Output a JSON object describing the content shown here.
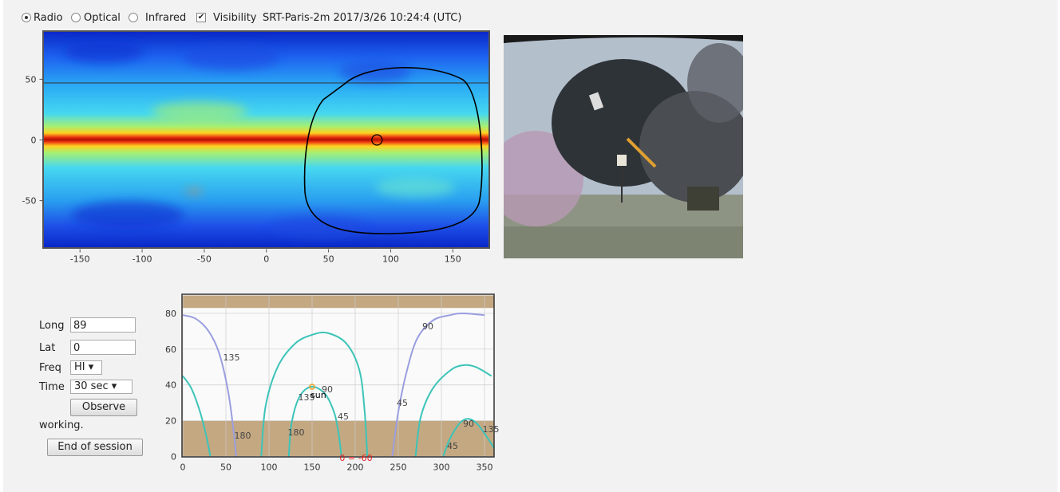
{
  "toolbar": {
    "modes": [
      {
        "label": "Radio",
        "checked": true
      },
      {
        "label": "Optical",
        "checked": false
      },
      {
        "label": "Infrared",
        "checked": false
      }
    ],
    "visibility": {
      "label": "Visibility",
      "checked": true
    },
    "status": "SRT-Paris-2m 2017/3/26 10:24:4 (UTC)"
  },
  "sky_map": {
    "type": "heatmap",
    "xlim": [
      -180,
      180
    ],
    "ylim": [
      -90,
      90
    ],
    "xticks": [
      -150,
      -100,
      -50,
      0,
      50,
      100,
      150
    ],
    "yticks": [
      -50,
      0,
      50
    ],
    "pointer": {
      "x": 89,
      "y": 0
    }
  },
  "form": {
    "fields": [
      {
        "label": "Long",
        "value": "89"
      },
      {
        "label": "Lat",
        "value": "0"
      }
    ],
    "selects": [
      {
        "label": "Freq",
        "value": "HI"
      },
      {
        "label": "Time",
        "value": "30 sec"
      }
    ],
    "observe": "Observe",
    "status": "working.",
    "end": "End of session"
  },
  "chart_data": {
    "type": "line",
    "xlim": [
      0,
      360
    ],
    "ylim": [
      0,
      90
    ],
    "xticks": [
      0,
      50,
      100,
      150,
      200,
      250,
      300,
      350
    ],
    "yticks": [
      0,
      20,
      40,
      60,
      80
    ],
    "grid": true,
    "shaded_ranges": [
      [
        0,
        20
      ],
      [
        83,
        90
      ]
    ],
    "shade_color": "#c4a882",
    "series": [
      {
        "color": "#9a9ee0",
        "x": [
          0,
          15,
          30,
          42,
          52,
          58,
          62
        ],
        "values": [
          79,
          77,
          70,
          58,
          38,
          18,
          0
        ]
      },
      {
        "color": "#9a9ee0",
        "x": [
          243,
          250,
          260,
          272,
          290,
          310,
          325,
          350
        ],
        "values": [
          0,
          25,
          48,
          66,
          76,
          79,
          80,
          79
        ]
      },
      {
        "color": "#3cc4b8",
        "x": [
          0,
          10,
          20,
          27,
          32
        ],
        "values": [
          45,
          38,
          25,
          12,
          0
        ]
      },
      {
        "color": "#3cc4b8",
        "x": [
          91,
          96,
          110,
          130,
          150,
          168,
          190,
          205,
          211,
          214
        ],
        "values": [
          0,
          28,
          50,
          63,
          68,
          69,
          63,
          48,
          25,
          0
        ]
      },
      {
        "color": "#3cc4b8",
        "x": [
          123,
          126,
          135,
          149,
          165,
          176,
          181,
          184
        ],
        "values": [
          0,
          18,
          33,
          39,
          35,
          24,
          12,
          0
        ]
      },
      {
        "color": "#3cc4b8",
        "x": [
          270,
          276,
          290,
          310,
          325,
          340,
          358
        ],
        "values": [
          0,
          22,
          38,
          48,
          51,
          50,
          45
        ]
      },
      {
        "color": "#3cc4b8",
        "x": [
          302,
          310,
          322,
          332,
          342,
          354,
          362
        ],
        "values": [
          0,
          10,
          19,
          21,
          18,
          10,
          4
        ]
      }
    ],
    "annotations": [
      "135",
      "180",
      "90",
      "45",
      "135",
      "180",
      "45",
      "90",
      "90",
      "135",
      "45"
    ],
    "sun": {
      "label": "sun",
      "x": 150,
      "y": 39,
      "color": "#f0a020"
    },
    "footnote": "0 = -60"
  }
}
